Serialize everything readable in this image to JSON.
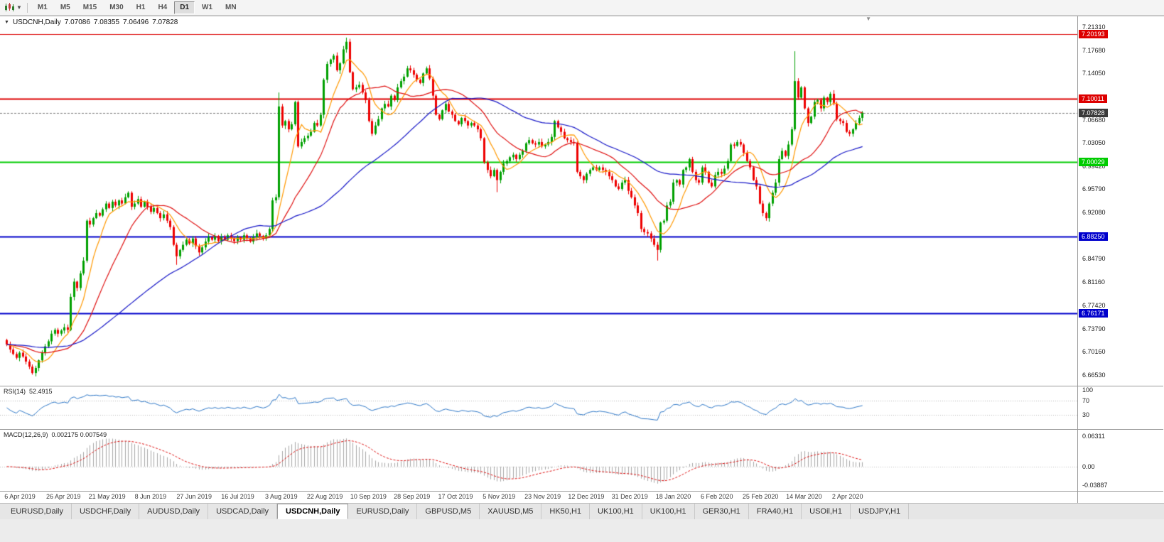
{
  "toolbar": {
    "timeframes": [
      {
        "label": "M1",
        "active": false
      },
      {
        "label": "M5",
        "active": false
      },
      {
        "label": "M15",
        "active": false
      },
      {
        "label": "M30",
        "active": false
      },
      {
        "label": "H1",
        "active": false
      },
      {
        "label": "H4",
        "active": false
      },
      {
        "label": "D1",
        "active": true
      },
      {
        "label": "W1",
        "active": false
      },
      {
        "label": "MN",
        "active": false
      }
    ]
  },
  "chart_data": {
    "type": "candlestick",
    "symbol": "USDCNH",
    "timeframe": "Daily",
    "title_line": {
      "symbol": "USDCNH,Daily",
      "o": "7.07086",
      "h": "7.08355",
      "l": "7.06496",
      "c": "7.07828"
    },
    "view": {
      "price_max": 7.23,
      "price_min": 6.648
    },
    "colors": {
      "up": "#00A000",
      "down": "#EE0000",
      "background": "#FFFFFF"
    },
    "current_price": {
      "label": "7.07828",
      "value": 7.07828,
      "color": "#3a3a3a"
    },
    "levels": [
      {
        "label": "7.20193",
        "value": 7.20193,
        "color": "#DD0000",
        "width": 1
      },
      {
        "label": "7.10011",
        "value": 7.10011,
        "color": "#DD0000",
        "width": 2
      },
      {
        "label": "7.00029",
        "value": 7.00029,
        "color": "#00CC00",
        "width": 2
      },
      {
        "label": "6.88250",
        "value": 6.8825,
        "color": "#0000CC",
        "width": 2
      },
      {
        "label": "6.76171",
        "value": 6.76171,
        "color": "#0000CC",
        "width": 2
      }
    ],
    "price_ticks": [
      {
        "label": "7.21310",
        "value": 7.2131
      },
      {
        "label": "7.17680",
        "value": 7.1768
      },
      {
        "label": "7.14050",
        "value": 7.1405
      },
      {
        "label": "7.06680",
        "value": 7.0668
      },
      {
        "label": "7.03050",
        "value": 7.0305
      },
      {
        "label": "6.99420",
        "value": 6.9942
      },
      {
        "label": "6.95790",
        "value": 6.9579
      },
      {
        "label": "6.92080",
        "value": 6.9208
      },
      {
        "label": "6.84790",
        "value": 6.8479
      },
      {
        "label": "6.81160",
        "value": 6.8116
      },
      {
        "label": "6.77420",
        "value": 6.7742
      },
      {
        "label": "6.73790",
        "value": 6.7379
      },
      {
        "label": "6.70160",
        "value": 6.7016
      },
      {
        "label": "6.66530",
        "value": 6.6653
      }
    ],
    "date_labels": [
      "6 Apr 2019",
      "26 Apr 2019",
      "21 May 2019",
      "8 Jun 2019",
      "27 Jun 2019",
      "16 Jul 2019",
      "3 Aug 2019",
      "22 Aug 2019",
      "10 Sep 2019",
      "28 Sep 2019",
      "17 Oct 2019",
      "5 Nov 2019",
      "23 Nov 2019",
      "12 Dec 2019",
      "31 Dec 2019",
      "18 Jan 2020",
      "6 Feb 2020",
      "25 Feb 2020",
      "14 Mar 2020",
      "2 Apr 2020"
    ],
    "moving_averages": [
      {
        "period": 8,
        "color": "#FF9900"
      },
      {
        "period": 20,
        "color": "#E01010"
      },
      {
        "period": 55,
        "color": "#1818C8"
      }
    ],
    "bars": {
      "first_open": 6.72,
      "closes": [
        6.713,
        6.705,
        6.698,
        6.692,
        6.7,
        6.694,
        6.686,
        6.678,
        6.668,
        6.676,
        6.688,
        6.7,
        6.71,
        6.718,
        6.73,
        6.736,
        6.73,
        6.735,
        6.74,
        6.736,
        6.788,
        6.812,
        6.802,
        6.825,
        6.845,
        6.908,
        6.902,
        6.912,
        6.92,
        6.916,
        6.926,
        6.935,
        6.928,
        6.938,
        6.932,
        6.94,
        6.935,
        6.945,
        6.952,
        6.93,
        6.935,
        6.942,
        6.93,
        6.938,
        6.93,
        6.922,
        6.928,
        6.92,
        6.912,
        6.918,
        6.908,
        6.898,
        6.87,
        6.852,
        6.862,
        6.87,
        6.878,
        6.872,
        6.88,
        6.868,
        6.858,
        6.866,
        6.875,
        6.882,
        6.878,
        6.884,
        6.876,
        6.882,
        6.878,
        6.885,
        6.88,
        6.876,
        6.882,
        6.878,
        6.885,
        6.88,
        6.875,
        6.882,
        6.888,
        6.884,
        6.88,
        6.885,
        6.895,
        6.94,
        6.945,
        7.088,
        7.058,
        7.065,
        7.052,
        7.06,
        7.095,
        7.025,
        7.032,
        7.038,
        7.042,
        7.048,
        7.062,
        7.058,
        7.075,
        7.13,
        7.155,
        7.162,
        7.168,
        7.145,
        7.156,
        7.178,
        7.19,
        7.142,
        7.115,
        7.118,
        7.122,
        7.11,
        7.098,
        7.065,
        7.045,
        7.058,
        7.068,
        7.085,
        7.092,
        7.088,
        7.105,
        7.098,
        7.118,
        7.128,
        7.135,
        7.148,
        7.145,
        7.138,
        7.13,
        7.125,
        7.14,
        7.148,
        7.132,
        7.105,
        7.075,
        7.068,
        7.082,
        7.092,
        7.08,
        7.075,
        7.065,
        7.06,
        7.07,
        7.065,
        7.058,
        7.062,
        7.058,
        7.052,
        7.038,
        7.0,
        6.988,
        6.978,
        6.988,
        6.972,
        6.985,
        6.998,
        7.002,
        7.008,
        7.012,
        7.005,
        7.012,
        7.018,
        7.03,
        7.035,
        7.03,
        7.028,
        7.032,
        7.025,
        7.028,
        7.032,
        7.04,
        7.065,
        7.055,
        7.048,
        7.038,
        7.035,
        7.032,
        7.03,
        6.985,
        6.978,
        6.972,
        6.982,
        6.988,
        6.992,
        6.988,
        6.992,
        6.988,
        6.985,
        6.978,
        6.972,
        6.962,
        6.958,
        6.968,
        6.972,
        6.955,
        6.945,
        6.932,
        6.92,
        6.895,
        6.89,
        6.888,
        6.88,
        6.87,
        6.862,
        6.905,
        6.908,
        6.932,
        6.938,
        6.968,
        6.972,
        6.965,
        6.988,
        6.992,
        7.005,
        6.985,
        6.972,
        6.968,
        6.992,
        6.985,
        6.968,
        6.962,
        6.98,
        6.985,
        6.982,
        6.99,
        7.002,
        7.028,
        7.026,
        7.032,
        7.028,
        7.015,
        7.002,
        6.992,
        6.972,
        6.962,
        6.935,
        6.92,
        6.912,
        6.935,
        6.952,
        6.968,
        7.005,
        7.018,
        7.01,
        7.028,
        7.052,
        7.128,
        7.102,
        7.118,
        7.085,
        7.062,
        7.072,
        7.095,
        7.098,
        7.085,
        7.102,
        7.095,
        7.108,
        7.092,
        7.068,
        7.065,
        7.062,
        7.048,
        7.045,
        7.052,
        7.062,
        7.07,
        7.07828
      ],
      "wick_overrides": {
        "8": [
          null,
          6.6655
        ],
        "53": [
          null,
          6.8385
        ],
        "85": [
          7.11,
          null
        ],
        "106": [
          7.1965,
          null
        ],
        "153": [
          null,
          6.953
        ],
        "203": [
          null,
          6.8452
        ],
        "246": [
          7.175,
          null
        ]
      }
    }
  },
  "indicators": {
    "rsi": {
      "label": "RSI(14)",
      "value": "52.4915",
      "period": 14,
      "color": "#2E78C8",
      "levels": [
        70,
        30
      ],
      "scale": [
        {
          "label": "100",
          "value": 100
        },
        {
          "label": "70",
          "value": 70
        },
        {
          "label": "30",
          "value": 30
        }
      ]
    },
    "macd": {
      "label": "MACD(12,26,9)",
      "values": "0.002175 0.007549",
      "fast": 12,
      "slow": 26,
      "signal": 9,
      "histogram_color": "#A8A8A8",
      "signal_color": "#E01010",
      "range": {
        "max": 0.07,
        "min": -0.044
      },
      "scale": [
        {
          "label": "0.06311",
          "value": 0.06311
        },
        {
          "label": "0.00",
          "value": 0
        },
        {
          "label": "-0.03887",
          "value": -0.03887
        }
      ]
    }
  },
  "tabs": [
    {
      "label": "EURUSD,Daily",
      "active": false
    },
    {
      "label": "USDCHF,Daily",
      "active": false
    },
    {
      "label": "AUDUSD,Da­ily",
      "active": false
    },
    {
      "label": "USDCAD,Daily",
      "active": false
    },
    {
      "label": "USDCNH,Daily",
      "active": true
    },
    {
      "label": "EURUSD,Daily",
      "active": false
    },
    {
      "label": "GBPUSD,M5",
      "active": false
    },
    {
      "label": "XAUUSD,M5",
      "active": false
    },
    {
      "label": "HK50,H1",
      "active": false
    },
    {
      "label": "UK100,H1",
      "active": false
    },
    {
      "label": "UK100,H1",
      "active": false
    },
    {
      "label": "GER30,H1",
      "active": false
    },
    {
      "label": "FRA40,H1",
      "active": false
    },
    {
      "label": "USOil,H1",
      "active": false
    },
    {
      "label": "USDJPY,H1",
      "active": false
    }
  ]
}
